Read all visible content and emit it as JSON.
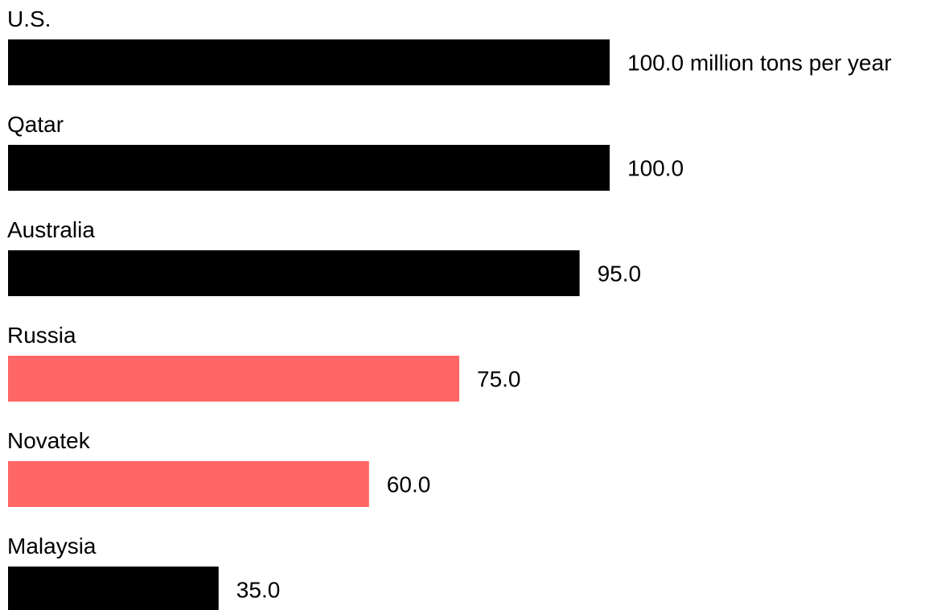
{
  "chart_data": {
    "type": "bar",
    "orientation": "horizontal",
    "categories": [
      "U.S.",
      "Qatar",
      "Australia",
      "Russia",
      "Novatek",
      "Malaysia"
    ],
    "values": [
      100.0,
      100.0,
      95.0,
      75.0,
      60.0,
      35.0
    ],
    "value_labels": [
      "100.0 million tons per year",
      "100.0",
      "95.0",
      "75.0",
      "60.0",
      "35.0"
    ],
    "bar_colors": [
      "#000000",
      "#000000",
      "#000000",
      "#ff6666",
      "#ff6666",
      "#000000"
    ],
    "xlim": [
      0,
      100
    ],
    "grid": false,
    "legend": "none"
  }
}
